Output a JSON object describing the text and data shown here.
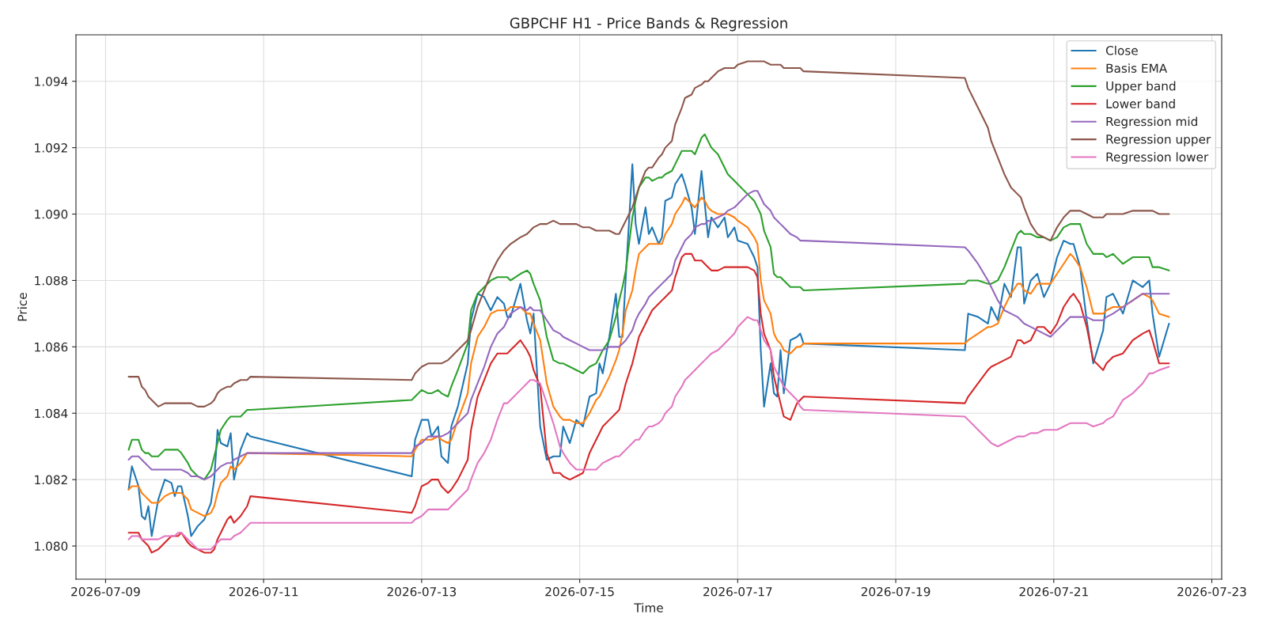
{
  "chart_data": {
    "type": "line",
    "title": "GBPCHF H1 - Price Bands & Regression",
    "xlabel": "Time",
    "ylabel": "Price",
    "x": [
      "2026-07-09T07:00",
      "2026-07-09T08:00",
      "2026-07-09T10:00",
      "2026-07-09T11:00",
      "2026-07-09T12:00",
      "2026-07-09T13:00",
      "2026-07-09T14:00",
      "2026-07-09T16:00",
      "2026-07-09T18:00",
      "2026-07-09T20:00",
      "2026-07-09T21:00",
      "2026-07-09T22:00",
      "2026-07-09T23:00",
      "2026-07-10T01:00",
      "2026-07-10T02:00",
      "2026-07-10T04:00",
      "2026-07-10T06:00",
      "2026-07-10T08:00",
      "2026-07-10T09:00",
      "2026-07-10T10:00",
      "2026-07-10T11:00",
      "2026-07-10T13:00",
      "2026-07-10T14:00",
      "2026-07-10T15:00",
      "2026-07-10T17:00",
      "2026-07-10T19:00",
      "2026-07-10T20:00",
      "2026-07-12T21:00",
      "2026-07-12T22:00",
      "2026-07-13T00:00",
      "2026-07-13T02:00",
      "2026-07-13T03:00",
      "2026-07-13T05:00",
      "2026-07-13T06:00",
      "2026-07-13T08:00",
      "2026-07-13T09:00",
      "2026-07-13T11:00",
      "2026-07-13T14:00",
      "2026-07-13T15:00",
      "2026-07-13T17:00",
      "2026-07-13T19:00",
      "2026-07-13T21:00",
      "2026-07-13T23:00",
      "2026-07-14T01:00",
      "2026-07-14T02:00",
      "2026-07-14T03:00",
      "2026-07-14T06:00",
      "2026-07-14T08:00",
      "2026-07-14T09:00",
      "2026-07-14T10:00",
      "2026-07-14T12:00",
      "2026-07-14T14:00",
      "2026-07-14T16:00",
      "2026-07-14T18:00",
      "2026-07-14T19:00",
      "2026-07-14T21:00",
      "2026-07-14T23:00",
      "2026-07-15T01:00",
      "2026-07-15T03:00",
      "2026-07-15T05:00",
      "2026-07-15T06:00",
      "2026-07-15T07:00",
      "2026-07-15T09:00",
      "2026-07-15T11:00",
      "2026-07-15T12:00",
      "2026-07-15T13:00",
      "2026-07-15T14:00",
      "2026-07-15T16:00",
      "2026-07-15T17:00",
      "2026-07-15T18:00",
      "2026-07-15T20:00",
      "2026-07-15T21:00",
      "2026-07-15T22:00",
      "2026-07-16T00:00",
      "2026-07-16T01:00",
      "2026-07-16T02:00",
      "2026-07-16T04:00",
      "2026-07-16T05:00",
      "2026-07-16T07:00",
      "2026-07-16T08:00",
      "2026-07-16T10:00",
      "2026-07-16T11:00",
      "2026-07-16T13:00",
      "2026-07-16T14:00",
      "2026-07-16T15:00",
      "2026-07-16T16:00",
      "2026-07-16T18:00",
      "2026-07-16T20:00",
      "2026-07-16T21:00",
      "2026-07-16T23:00",
      "2026-07-17T00:00",
      "2026-07-17T03:00",
      "2026-07-17T05:00",
      "2026-07-17T06:00",
      "2026-07-17T07:00",
      "2026-07-17T08:00",
      "2026-07-17T10:00",
      "2026-07-17T11:00",
      "2026-07-17T12:00",
      "2026-07-17T13:00",
      "2026-07-17T14:00",
      "2026-07-17T16:00",
      "2026-07-17T18:00",
      "2026-07-17T19:00",
      "2026-07-17T20:00",
      "2026-07-19T21:00",
      "2026-07-19T22:00",
      "2026-07-20T01:00",
      "2026-07-20T04:00",
      "2026-07-20T05:00",
      "2026-07-20T07:00",
      "2026-07-20T09:00",
      "2026-07-20T11:00",
      "2026-07-20T13:00",
      "2026-07-20T14:00",
      "2026-07-20T15:00",
      "2026-07-20T17:00",
      "2026-07-20T19:00",
      "2026-07-20T21:00",
      "2026-07-20T23:00",
      "2026-07-21T01:00",
      "2026-07-21T03:00",
      "2026-07-21T05:00",
      "2026-07-21T06:00",
      "2026-07-21T08:00",
      "2026-07-21T10:00",
      "2026-07-21T12:00",
      "2026-07-21T15:00",
      "2026-07-21T16:00",
      "2026-07-21T18:00",
      "2026-07-21T21:00",
      "2026-07-22T00:00",
      "2026-07-22T03:00",
      "2026-07-22T05:00",
      "2026-07-22T06:00",
      "2026-07-22T08:00",
      "2026-07-22T11:00"
    ],
    "series": [
      {
        "name": "Close",
        "color": "#1f77b4",
        "values": [
          1.0817,
          1.0824,
          1.0818,
          1.0809,
          1.0808,
          1.0812,
          1.0803,
          1.0814,
          1.082,
          1.0819,
          1.0815,
          1.0818,
          1.0818,
          1.0809,
          1.0803,
          1.0806,
          1.0808,
          1.0813,
          1.082,
          1.0835,
          1.0831,
          1.083,
          1.0834,
          1.082,
          1.0829,
          1.0834,
          1.0833,
          1.0821,
          1.0832,
          1.0838,
          1.0838,
          1.0833,
          1.0836,
          1.0827,
          1.0825,
          1.0836,
          1.0842,
          1.0855,
          1.0868,
          1.0876,
          1.0875,
          1.0871,
          1.0875,
          1.0873,
          1.0869,
          1.0869,
          1.0879,
          1.0868,
          1.0864,
          1.087,
          1.0836,
          1.0826,
          1.0827,
          1.0827,
          1.0836,
          1.0831,
          1.0838,
          1.0836,
          1.0845,
          1.0846,
          1.0855,
          1.0852,
          1.0863,
          1.0876,
          1.0863,
          1.0863,
          1.0881,
          1.0915,
          1.0897,
          1.0891,
          1.0902,
          1.0894,
          1.0896,
          1.0891,
          1.0893,
          1.0904,
          1.0905,
          1.0909,
          1.0912,
          1.0909,
          1.0902,
          1.0894,
          1.0913,
          1.0903,
          1.0893,
          1.0899,
          1.0896,
          1.0899,
          1.0893,
          1.0896,
          1.0892,
          1.0891,
          1.0887,
          1.0884,
          1.0859,
          1.0842,
          1.0855,
          1.0846,
          1.0845,
          1.0859,
          1.0846,
          1.0862,
          1.0863,
          1.0864,
          1.0861,
          1.0859,
          1.087,
          1.0869,
          1.0867,
          1.0872,
          1.0868,
          1.0879,
          1.0875,
          1.089,
          1.089,
          1.0873,
          1.088,
          1.0882,
          1.0875,
          1.0879,
          1.0887,
          1.0892,
          1.0891,
          1.0891,
          1.0884,
          1.0868,
          1.0855,
          1.0865,
          1.0875,
          1.0876,
          1.087,
          1.088,
          1.0878,
          1.088,
          1.087,
          1.0857,
          1.0867
        ]
      },
      {
        "name": "Basis EMA",
        "color": "#ff7f0e",
        "values": [
          1.0817,
          1.0818,
          1.0818,
          1.0816,
          1.0815,
          1.0814,
          1.0813,
          1.0813,
          1.0815,
          1.0816,
          1.0816,
          1.0816,
          1.0816,
          1.0814,
          1.0811,
          1.081,
          1.0809,
          1.081,
          1.0812,
          1.0816,
          1.0819,
          1.0821,
          1.0824,
          1.0823,
          1.0825,
          1.0828,
          1.0828,
          1.0827,
          1.0829,
          1.0832,
          1.0832,
          1.0832,
          1.0833,
          1.0832,
          1.0831,
          1.0832,
          1.0838,
          1.0846,
          1.0855,
          1.0863,
          1.0866,
          1.087,
          1.0871,
          1.0871,
          1.0871,
          1.0872,
          1.0872,
          1.087,
          1.087,
          1.0867,
          1.0862,
          1.0849,
          1.0842,
          1.0839,
          1.0838,
          1.0838,
          1.0837,
          1.0837,
          1.084,
          1.0844,
          1.0845,
          1.0847,
          1.0851,
          1.0856,
          1.0859,
          1.0864,
          1.0871,
          1.0877,
          1.0883,
          1.0888,
          1.089,
          1.0891,
          1.0891,
          1.0891,
          1.0891,
          1.0894,
          1.0897,
          1.09,
          1.0903,
          1.0905,
          1.0903,
          1.0902,
          1.0905,
          1.0904,
          1.0902,
          1.0901,
          1.09,
          1.09,
          1.09,
          1.0899,
          1.0898,
          1.0896,
          1.0893,
          1.0891,
          1.088,
          1.0874,
          1.087,
          1.0864,
          1.0862,
          1.0861,
          1.0859,
          1.0858,
          1.086,
          1.086,
          1.0861,
          1.0861,
          1.0862,
          1.0864,
          1.0866,
          1.0866,
          1.0867,
          1.0872,
          1.0876,
          1.0879,
          1.0879,
          1.0877,
          1.0876,
          1.0879,
          1.0879,
          1.0879,
          1.0882,
          1.0885,
          1.0888,
          1.0887,
          1.0884,
          1.0878,
          1.087,
          1.087,
          1.0871,
          1.0872,
          1.0872,
          1.0874,
          1.0876,
          1.0875,
          1.0874,
          1.087,
          1.0869
        ]
      },
      {
        "name": "Upper band",
        "color": "#2ca02c",
        "values": [
          1.0829,
          1.0832,
          1.0832,
          1.0829,
          1.0828,
          1.0828,
          1.0827,
          1.0827,
          1.0829,
          1.0829,
          1.0829,
          1.0829,
          1.0828,
          1.0825,
          1.0823,
          1.0821,
          1.082,
          1.0823,
          1.0827,
          1.0831,
          1.0835,
          1.0838,
          1.0839,
          1.0839,
          1.0839,
          1.0841,
          1.0841,
          1.0844,
          1.0845,
          1.0847,
          1.0846,
          1.0846,
          1.0847,
          1.0846,
          1.0845,
          1.0848,
          1.0853,
          1.0861,
          1.0871,
          1.0876,
          1.0878,
          1.088,
          1.0881,
          1.0881,
          1.0881,
          1.088,
          1.0882,
          1.0883,
          1.0882,
          1.0879,
          1.0874,
          1.0863,
          1.0856,
          1.0855,
          1.0855,
          1.0854,
          1.0853,
          1.0852,
          1.0854,
          1.0855,
          1.0857,
          1.0859,
          1.0862,
          1.0869,
          1.0874,
          1.0878,
          1.0883,
          1.0899,
          1.0904,
          1.0908,
          1.0911,
          1.0911,
          1.091,
          1.0911,
          1.0911,
          1.0912,
          1.0913,
          1.0915,
          1.0919,
          1.0919,
          1.0919,
          1.0918,
          1.0923,
          1.0924,
          1.0922,
          1.092,
          1.0918,
          1.0914,
          1.0912,
          1.091,
          1.0909,
          1.0906,
          1.0904,
          1.0902,
          1.09,
          1.0895,
          1.089,
          1.0882,
          1.0881,
          1.0881,
          1.088,
          1.0878,
          1.0878,
          1.0878,
          1.0877,
          1.0879,
          1.088,
          1.088,
          1.0879,
          1.0879,
          1.088,
          1.0884,
          1.0889,
          1.0894,
          1.0895,
          1.0894,
          1.0894,
          1.0893,
          1.0893,
          1.0892,
          1.0893,
          1.0896,
          1.0897,
          1.0897,
          1.0897,
          1.0891,
          1.0888,
          1.0888,
          1.0887,
          1.0888,
          1.0885,
          1.0887,
          1.0887,
          1.0887,
          1.0884,
          1.0884,
          1.0883
        ]
      },
      {
        "name": "Lower band",
        "color": "#d62728",
        "values": [
          1.0804,
          1.0804,
          1.0804,
          1.0802,
          1.0801,
          1.08,
          1.0798,
          1.0799,
          1.0801,
          1.0803,
          1.0803,
          1.0803,
          1.0804,
          1.0801,
          1.08,
          1.0799,
          1.0798,
          1.0798,
          1.0799,
          1.0802,
          1.0804,
          1.0808,
          1.0809,
          1.0807,
          1.0809,
          1.0812,
          1.0815,
          1.081,
          1.0812,
          1.0818,
          1.0819,
          1.082,
          1.082,
          1.0818,
          1.0816,
          1.0817,
          1.082,
          1.0826,
          1.0835,
          1.0845,
          1.085,
          1.0855,
          1.0858,
          1.0858,
          1.0858,
          1.0859,
          1.0862,
          1.0859,
          1.0857,
          1.0853,
          1.0848,
          1.0828,
          1.0822,
          1.0822,
          1.0821,
          1.082,
          1.0821,
          1.0822,
          1.0828,
          1.0832,
          1.0834,
          1.0836,
          1.0838,
          1.084,
          1.0841,
          1.0845,
          1.0849,
          1.0855,
          1.0859,
          1.0863,
          1.0867,
          1.0869,
          1.0871,
          1.0873,
          1.0874,
          1.0875,
          1.0877,
          1.0881,
          1.0887,
          1.0888,
          1.0888,
          1.0886,
          1.0886,
          1.0885,
          1.0884,
          1.0883,
          1.0883,
          1.0884,
          1.0884,
          1.0884,
          1.0884,
          1.0884,
          1.0883,
          1.0881,
          1.087,
          1.0864,
          1.0859,
          1.0851,
          1.0847,
          1.0843,
          1.0839,
          1.0838,
          1.0843,
          1.0844,
          1.0845,
          1.0843,
          1.0845,
          1.0849,
          1.0853,
          1.0854,
          1.0855,
          1.0856,
          1.0857,
          1.0862,
          1.0862,
          1.0861,
          1.0862,
          1.0866,
          1.0866,
          1.0864,
          1.0867,
          1.0872,
          1.0875,
          1.0876,
          1.0873,
          1.0866,
          1.0856,
          1.0853,
          1.0855,
          1.0857,
          1.0858,
          1.0862,
          1.0864,
          1.0865,
          1.0862,
          1.0855,
          1.0855
        ]
      },
      {
        "name": "Regression mid",
        "color": "#9467bd",
        "values": [
          1.0826,
          1.0827,
          1.0827,
          1.0826,
          1.0825,
          1.0824,
          1.0823,
          1.0823,
          1.0823,
          1.0823,
          1.0823,
          1.0823,
          1.0823,
          1.0822,
          1.0821,
          1.0821,
          1.082,
          1.0821,
          1.0822,
          1.0823,
          1.0824,
          1.0825,
          1.0825,
          1.0826,
          1.0827,
          1.0828,
          1.0828,
          1.0828,
          1.083,
          1.0831,
          1.0833,
          1.0833,
          1.0833,
          1.0833,
          1.0834,
          1.0835,
          1.0837,
          1.084,
          1.0844,
          1.0849,
          1.0854,
          1.086,
          1.0864,
          1.0866,
          1.0868,
          1.087,
          1.0872,
          1.0871,
          1.0872,
          1.0871,
          1.0871,
          1.0868,
          1.0865,
          1.0864,
          1.0863,
          1.0862,
          1.0861,
          1.086,
          1.0859,
          1.0859,
          1.0859,
          1.0859,
          1.086,
          1.086,
          1.086,
          1.0861,
          1.0862,
          1.0865,
          1.0868,
          1.087,
          1.0873,
          1.0875,
          1.0876,
          1.0878,
          1.0879,
          1.088,
          1.0882,
          1.0886,
          1.089,
          1.0892,
          1.0894,
          1.0896,
          1.0897,
          1.0897,
          1.0898,
          1.0898,
          1.0899,
          1.09,
          1.0901,
          1.0902,
          1.0903,
          1.0906,
          1.0907,
          1.0907,
          1.0905,
          1.0903,
          1.0901,
          1.0899,
          1.0898,
          1.0897,
          1.0896,
          1.0894,
          1.0893,
          1.0892,
          1.0892,
          1.089,
          1.0889,
          1.0885,
          1.088,
          1.0878,
          1.0874,
          1.0871,
          1.087,
          1.0869,
          1.0868,
          1.0867,
          1.0866,
          1.0865,
          1.0864,
          1.0863,
          1.0865,
          1.0867,
          1.0869,
          1.0869,
          1.0869,
          1.0869,
          1.0868,
          1.0868,
          1.0869,
          1.087,
          1.0872,
          1.0874,
          1.0876,
          1.0876,
          1.0876,
          1.0876,
          1.0876
        ]
      },
      {
        "name": "Regression upper",
        "color": "#8c564b",
        "values": [
          1.0851,
          1.0851,
          1.0851,
          1.0848,
          1.0847,
          1.0845,
          1.0844,
          1.0842,
          1.0843,
          1.0843,
          1.0843,
          1.0843,
          1.0843,
          1.0843,
          1.0843,
          1.0842,
          1.0842,
          1.0843,
          1.0844,
          1.0846,
          1.0847,
          1.0848,
          1.0848,
          1.0849,
          1.085,
          1.085,
          1.0851,
          1.085,
          1.0852,
          1.0854,
          1.0855,
          1.0855,
          1.0855,
          1.0855,
          1.0856,
          1.0857,
          1.0859,
          1.0862,
          1.0865,
          1.0872,
          1.0877,
          1.0882,
          1.0886,
          1.0889,
          1.089,
          1.0891,
          1.0893,
          1.0894,
          1.0895,
          1.0896,
          1.0897,
          1.0897,
          1.0898,
          1.0897,
          1.0897,
          1.0897,
          1.0897,
          1.0896,
          1.0896,
          1.0895,
          1.0895,
          1.0895,
          1.0895,
          1.0894,
          1.0894,
          1.0896,
          1.0898,
          1.0902,
          1.0905,
          1.0908,
          1.0913,
          1.0914,
          1.0914,
          1.0917,
          1.0918,
          1.092,
          1.0922,
          1.0927,
          1.0932,
          1.0935,
          1.0936,
          1.0938,
          1.0939,
          1.094,
          1.094,
          1.0941,
          1.0943,
          1.0944,
          1.0944,
          1.0944,
          1.0945,
          1.0946,
          1.0946,
          1.0946,
          1.0946,
          1.0946,
          1.0945,
          1.0945,
          1.0945,
          1.0945,
          1.0944,
          1.0944,
          1.0944,
          1.0944,
          1.0943,
          1.0941,
          1.0938,
          1.0932,
          1.0926,
          1.0922,
          1.0917,
          1.0912,
          1.0908,
          1.0906,
          1.0905,
          1.0902,
          1.0897,
          1.0894,
          1.0893,
          1.0892,
          1.0896,
          1.0899,
          1.0901,
          1.0901,
          1.0901,
          1.09,
          1.0899,
          1.0899,
          1.09,
          1.09,
          1.09,
          1.0901,
          1.0901,
          1.0901,
          1.0901,
          1.09,
          1.09
        ]
      },
      {
        "name": "Regression lower",
        "color": "#e377c2",
        "values": [
          1.0802,
          1.0803,
          1.0803,
          1.0802,
          1.0802,
          1.0802,
          1.0802,
          1.0802,
          1.0803,
          1.0803,
          1.0803,
          1.0804,
          1.0804,
          1.0802,
          1.0801,
          1.0799,
          1.0799,
          1.0799,
          1.08,
          1.0801,
          1.0802,
          1.0802,
          1.0802,
          1.0803,
          1.0804,
          1.0806,
          1.0807,
          1.0807,
          1.0808,
          1.0809,
          1.0811,
          1.0811,
          1.0811,
          1.0811,
          1.0811,
          1.0812,
          1.0814,
          1.0817,
          1.082,
          1.0825,
          1.0828,
          1.0832,
          1.0838,
          1.0843,
          1.0843,
          1.0844,
          1.0847,
          1.0849,
          1.085,
          1.085,
          1.0849,
          1.0843,
          1.0837,
          1.083,
          1.0828,
          1.0825,
          1.0823,
          1.0823,
          1.0823,
          1.0823,
          1.0824,
          1.0825,
          1.0826,
          1.0827,
          1.0827,
          1.0828,
          1.0829,
          1.0831,
          1.0832,
          1.0832,
          1.0835,
          1.0836,
          1.0836,
          1.0837,
          1.0838,
          1.084,
          1.0842,
          1.0845,
          1.0848,
          1.085,
          1.0852,
          1.0853,
          1.0855,
          1.0856,
          1.0857,
          1.0858,
          1.0859,
          1.0861,
          1.0862,
          1.0864,
          1.0866,
          1.0869,
          1.0868,
          1.0868,
          1.0865,
          1.0862,
          1.0859,
          1.0854,
          1.0852,
          1.085,
          1.0848,
          1.0846,
          1.0844,
          1.0842,
          1.0841,
          1.0839,
          1.0838,
          1.0835,
          1.0832,
          1.0831,
          1.083,
          1.0831,
          1.0832,
          1.0833,
          1.0833,
          1.0833,
          1.0834,
          1.0834,
          1.0835,
          1.0835,
          1.0835,
          1.0836,
          1.0837,
          1.0837,
          1.0837,
          1.0837,
          1.0836,
          1.0837,
          1.0838,
          1.0839,
          1.0844,
          1.0846,
          1.0849,
          1.0852,
          1.0852,
          1.0853,
          1.0854
        ]
      }
    ],
    "xlim": [
      "2026-07-08T15:00",
      "2026-07-23T03:00"
    ],
    "xticks": [
      "2026-07-09",
      "2026-07-11",
      "2026-07-13",
      "2026-07-15",
      "2026-07-17",
      "2026-07-19",
      "2026-07-21",
      "2026-07-23"
    ],
    "ylim": [
      1.079,
      1.0954
    ],
    "yticks": [
      {
        "value": 1.08,
        "label": "1.080"
      },
      {
        "value": 1.082,
        "label": "1.082"
      },
      {
        "value": 1.084,
        "label": "1.084"
      },
      {
        "value": 1.086,
        "label": "1.086"
      },
      {
        "value": 1.088,
        "label": "1.088"
      },
      {
        "value": 1.09,
        "label": "1.090"
      },
      {
        "value": 1.092,
        "label": "1.092"
      },
      {
        "value": 1.094,
        "label": "1.094"
      }
    ],
    "grid": true,
    "legend": "top right",
    "line_style": "solid",
    "marker": "none"
  }
}
